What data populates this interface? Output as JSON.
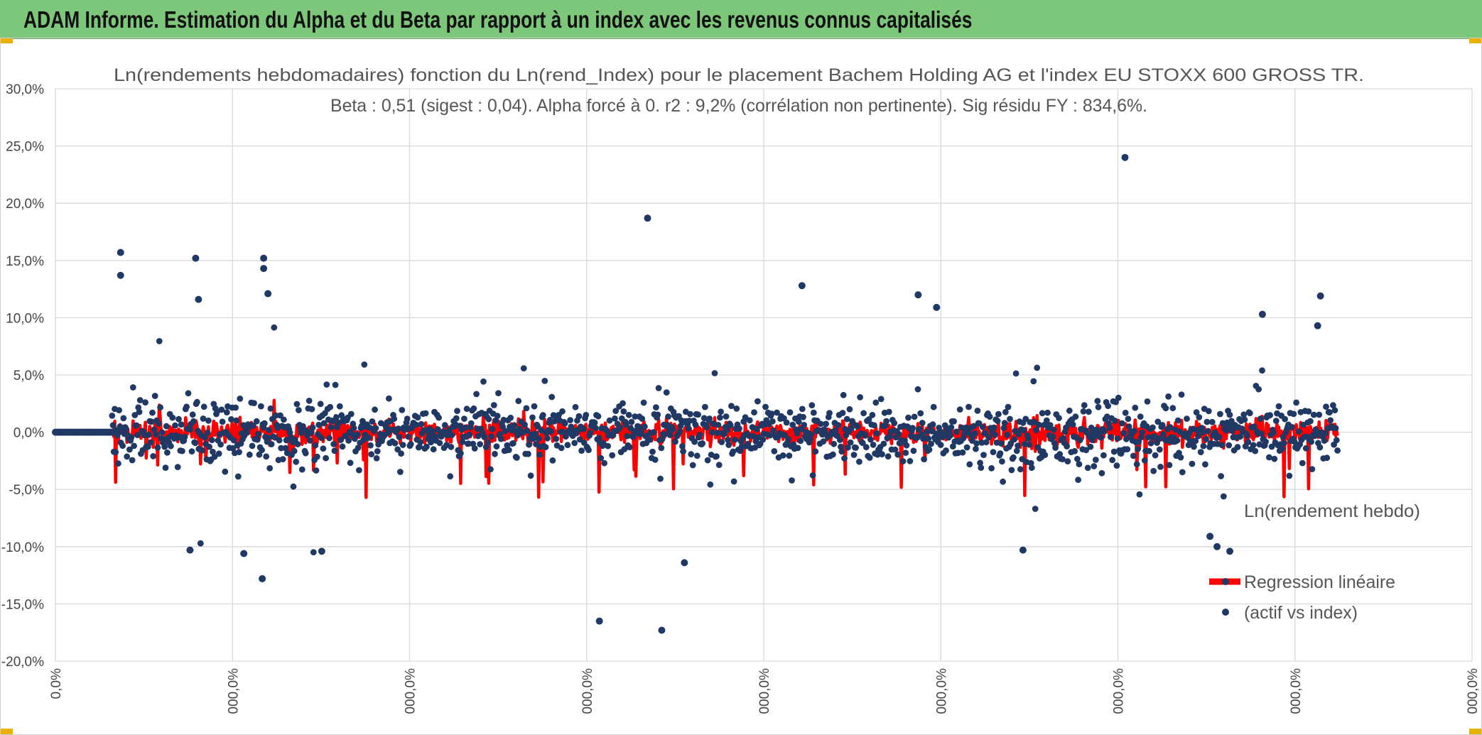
{
  "header": {
    "title": "ADAM Informe. Estimation du Alpha et du Beta par rapport à un index avec les revenus connus capitalisés"
  },
  "colors": {
    "header_bg": "#7dc77a",
    "scatter": "#203864",
    "regression": "#ff0000",
    "grid": "#d9d9d9"
  },
  "chart_data": {
    "type": "scatter",
    "title_lines": [
      "Ln(rendements hebdomadaires) fonction du Ln(rend_Index) pour le placement Bachem Holding AG et l'index EU STOXX 600 GROSS TR.",
      "Beta : 0,51 (sigest : 0,04). Alpha forcé à 0. r2 : 9,2% (corrélation non pertinente). Sig résidu FY : 834,6%."
    ],
    "ylim": [
      -0.2,
      0.3
    ],
    "yticks": [
      -0.2,
      -0.15,
      -0.1,
      -0.05,
      0.0,
      0.05,
      0.1,
      0.15,
      0.2,
      0.25,
      0.3
    ],
    "ytick_labels": [
      "-20,0%",
      "-15,0%",
      "-10,0%",
      "-5,0%",
      "0,0%",
      "5,0%",
      "10,0%",
      "15,0%",
      "20,0%",
      "25,0%",
      "30,0%"
    ],
    "xtick_labels": [
      "0,0%",
      "000,0%",
      "000,0%",
      "000,0%",
      "000,0%",
      "000,0%",
      "000,0%",
      "000,0%",
      "000,0%"
    ],
    "x_data_range": [
      0.04,
      0.905
    ],
    "zero_run_end": 0.045,
    "beta": 0.51,
    "points_count": 1400,
    "outliers": [
      {
        "x": 0.046,
        "y": 0.157
      },
      {
        "x": 0.046,
        "y": 0.137
      },
      {
        "x": 0.099,
        "y": 0.152
      },
      {
        "x": 0.101,
        "y": 0.116
      },
      {
        "x": 0.147,
        "y": 0.152
      },
      {
        "x": 0.147,
        "y": 0.143
      },
      {
        "x": 0.15,
        "y": 0.121
      },
      {
        "x": 0.146,
        "y": -0.128
      },
      {
        "x": 0.133,
        "y": -0.106
      },
      {
        "x": 0.095,
        "y": -0.103
      },
      {
        "x": 0.188,
        "y": -0.104
      },
      {
        "x": 0.418,
        "y": 0.187
      },
      {
        "x": 0.384,
        "y": -0.165
      },
      {
        "x": 0.428,
        "y": -0.173
      },
      {
        "x": 0.444,
        "y": -0.114
      },
      {
        "x": 0.527,
        "y": 0.128
      },
      {
        "x": 0.755,
        "y": 0.24
      },
      {
        "x": 0.609,
        "y": 0.12
      },
      {
        "x": 0.622,
        "y": 0.109
      },
      {
        "x": 0.683,
        "y": -0.103
      },
      {
        "x": 0.852,
        "y": 0.103
      },
      {
        "x": 0.893,
        "y": 0.119
      },
      {
        "x": 0.891,
        "y": 0.093
      },
      {
        "x": 0.82,
        "y": -0.1
      },
      {
        "x": 0.829,
        "y": -0.104
      },
      {
        "x": 0.815,
        "y": -0.091
      }
    ],
    "legend": {
      "series_label": "Ln(rendement hebdo)",
      "regression_label_line1": "Regression linéaire",
      "regression_label_line2": "(actif vs index)"
    }
  }
}
